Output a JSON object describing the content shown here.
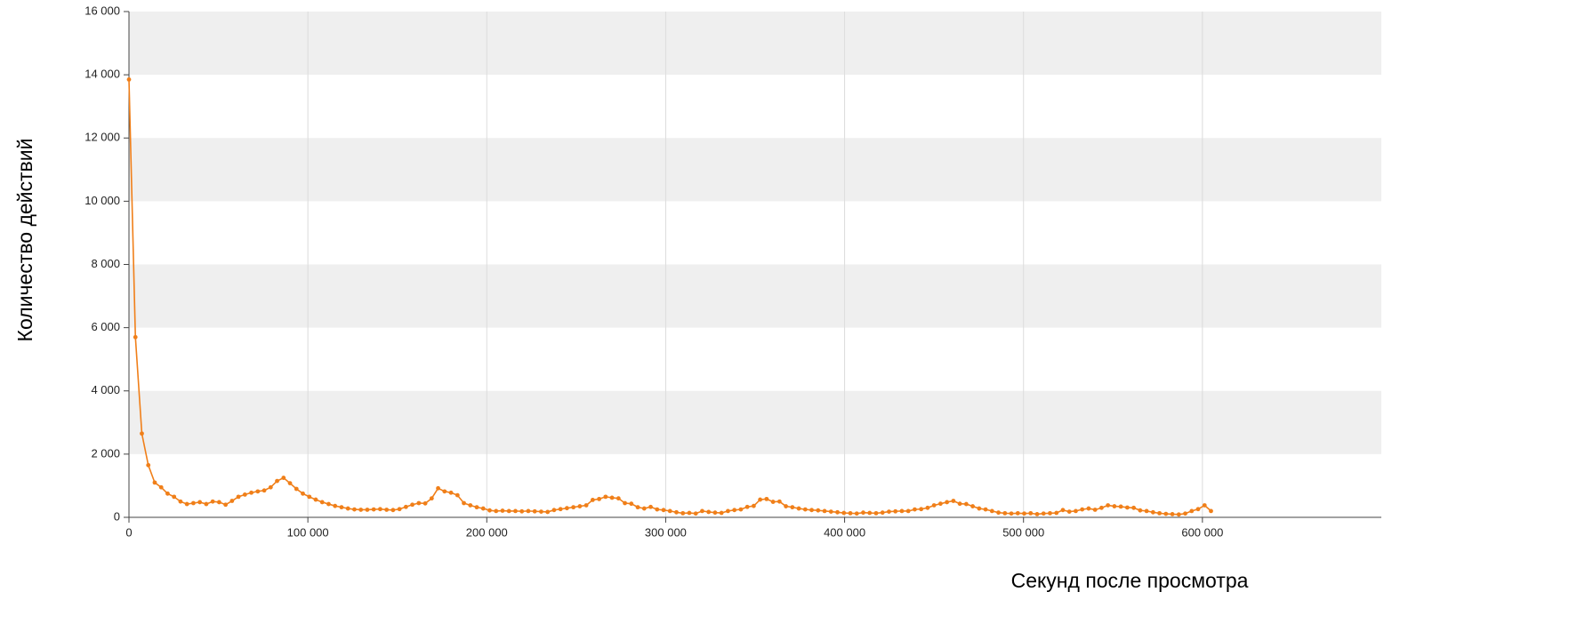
{
  "chart_data": {
    "type": "line",
    "y_label": "Количество действий",
    "x_label": "Секунд после просмотра",
    "xlim": [
      0,
      700000
    ],
    "ylim": [
      0,
      16000
    ],
    "xticks": [
      0,
      {
        "value": 100000,
        "label": "100 000"
      },
      {
        "value": 200000,
        "label": "200 000"
      },
      {
        "value": 300000,
        "label": "300 000"
      },
      {
        "value": 400000,
        "label": "400 000"
      },
      {
        "value": 500000,
        "label": "500 000"
      },
      {
        "value": 600000,
        "label": "600 000"
      }
    ],
    "yticks": [
      0,
      {
        "value": 2000,
        "label": "2 000"
      },
      {
        "value": 4000,
        "label": "4 000"
      },
      {
        "value": 6000,
        "label": "6 000"
      },
      {
        "value": 8000,
        "label": "8 000"
      },
      {
        "value": 10000,
        "label": "10 000"
      },
      {
        "value": 12000,
        "label": "12 000"
      },
      {
        "value": 14000,
        "label": "14 000"
      },
      {
        "value": 16000,
        "label": "16 000"
      }
    ],
    "grid": true,
    "x": [
      0,
      3600,
      7200,
      10800,
      14400,
      18000,
      21600,
      25200,
      28800,
      32400,
      36000,
      39600,
      43200,
      46800,
      50400,
      54000,
      57600,
      61200,
      64800,
      68400,
      72000,
      75600,
      79200,
      82800,
      86400,
      90000,
      93600,
      97200,
      100800,
      104400,
      108000,
      111600,
      115200,
      118800,
      122400,
      126000,
      129600,
      133200,
      136800,
      140400,
      144000,
      147600,
      151200,
      154800,
      158400,
      162000,
      165600,
      169200,
      172800,
      176400,
      180000,
      183600,
      187200,
      190800,
      194400,
      198000,
      201600,
      205200,
      208800,
      212400,
      216000,
      219600,
      223200,
      226800,
      230400,
      234000,
      237600,
      241200,
      244800,
      248400,
      252000,
      255600,
      259200,
      262800,
      266400,
      270000,
      273600,
      277200,
      280800,
      284400,
      288000,
      291600,
      295200,
      298800,
      302400,
      306000,
      309600,
      313200,
      316800,
      320400,
      324000,
      327600,
      331200,
      334800,
      338400,
      342000,
      345600,
      349200,
      352800,
      356400,
      360000,
      363600,
      367200,
      370800,
      374400,
      378000,
      381600,
      385200,
      388800,
      392400,
      396000,
      399600,
      403200,
      406800,
      410400,
      414000,
      417600,
      421200,
      424800,
      428400,
      432000,
      435600,
      439200,
      442800,
      446400,
      450000,
      453600,
      457200,
      460800,
      464400,
      468000,
      471600,
      475200,
      478800,
      482400,
      486000,
      489600,
      493200,
      496800,
      500400,
      504000,
      507600,
      511200,
      514800,
      518400,
      522000,
      525600,
      529200,
      532800,
      536400,
      540000,
      543600,
      547200,
      550800,
      554400,
      558000,
      561600,
      565200,
      568800,
      572400,
      576000,
      579600,
      583200,
      586800,
      590400,
      594000,
      597600,
      601200,
      604800
    ],
    "series": [
      {
        "color": "#f07f19",
        "values": [
          13850,
          5700,
          2650,
          1650,
          1100,
          950,
          750,
          650,
          500,
          420,
          450,
          480,
          420,
          500,
          480,
          400,
          520,
          650,
          720,
          780,
          820,
          850,
          950,
          1150,
          1250,
          1080,
          900,
          750,
          650,
          560,
          480,
          420,
          360,
          320,
          280,
          250,
          240,
          240,
          250,
          260,
          240,
          230,
          260,
          330,
          400,
          450,
          440,
          600,
          920,
          820,
          780,
          700,
          450,
          380,
          320,
          280,
          220,
          200,
          210,
          200,
          200,
          190,
          200,
          190,
          180,
          170,
          230,
          260,
          290,
          320,
          350,
          380,
          550,
          580,
          650,
          620,
          600,
          450,
          430,
          320,
          280,
          330,
          250,
          230,
          200,
          160,
          130,
          140,
          120,
          200,
          170,
          150,
          140,
          200,
          230,
          250,
          330,
          360,
          560,
          580,
          490,
          500,
          350,
          320,
          280,
          250,
          230,
          220,
          200,
          180,
          160,
          140,
          130,
          120,
          150,
          140,
          130,
          150,
          180,
          190,
          200,
          200,
          250,
          260,
          300,
          380,
          430,
          480,
          520,
          430,
          420,
          350,
          280,
          250,
          200,
          150,
          130,
          120,
          130,
          120,
          130,
          100,
          120,
          130,
          140,
          230,
          180,
          200,
          250,
          280,
          240,
          300,
          380,
          350,
          340,
          310,
          300,
          220,
          200,
          160,
          130,
          110,
          100,
          90,
          120,
          200,
          260,
          380,
          200
        ]
      }
    ]
  }
}
